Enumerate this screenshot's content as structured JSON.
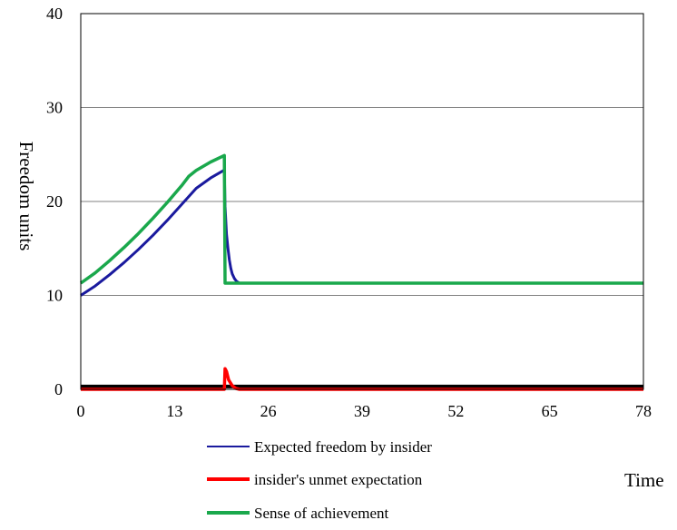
{
  "chart_data": {
    "type": "line",
    "title": "",
    "xlabel": "Time",
    "ylabel": "Freedom units",
    "xlim": [
      0,
      78
    ],
    "ylim": [
      0,
      40
    ],
    "xticks": [
      0,
      13,
      26,
      39,
      52,
      65,
      78
    ],
    "yticks": [
      0,
      10,
      20,
      30,
      40
    ],
    "grid": "horizontal",
    "legend_position": "bottom",
    "series": [
      {
        "name": "Expected freedom by insider",
        "color": "#1a1a9e",
        "x": [
          0,
          2,
          4,
          6,
          8,
          10,
          12,
          14,
          16,
          18,
          19.8,
          19.9,
          20.0,
          20.2,
          20.4,
          20.6,
          20.8,
          21.0,
          21.3,
          21.6,
          22.0,
          30,
          40,
          50,
          60,
          70,
          78
        ],
        "y": [
          10,
          11.0,
          12.2,
          13.5,
          14.9,
          16.4,
          18.0,
          19.7,
          21.4,
          22.5,
          23.3,
          23.3,
          19.5,
          16.5,
          15.0,
          13.8,
          12.9,
          12.3,
          11.8,
          11.5,
          11.3,
          11.3,
          11.3,
          11.3,
          11.3,
          11.3,
          11.3
        ]
      },
      {
        "name": "insider's unmet expectation",
        "color": "#ff0000",
        "x": [
          0,
          10,
          19.9,
          20.0,
          20.2,
          20.5,
          21.0,
          21.5,
          22.0,
          30,
          50,
          78
        ],
        "y": [
          0,
          0,
          0,
          2.2,
          1.9,
          1.0,
          0.4,
          0.1,
          0,
          0,
          0,
          0
        ]
      },
      {
        "name": "Sense of achievement",
        "color": "#1aa84c",
        "x": [
          0,
          2,
          4,
          6,
          8,
          10,
          12,
          14,
          15,
          16,
          18,
          19.9,
          20.0,
          30,
          40,
          50,
          60,
          70,
          78
        ],
        "y": [
          11.3,
          12.4,
          13.7,
          15.1,
          16.6,
          18.2,
          19.9,
          21.7,
          22.7,
          23.3,
          24.2,
          24.9,
          11.3,
          11.3,
          11.3,
          11.3,
          11.3,
          11.3,
          11.3
        ]
      },
      {
        "color": "#000000",
        "x": [
          0,
          78
        ],
        "y": [
          0.3,
          0.3
        ]
      }
    ]
  }
}
